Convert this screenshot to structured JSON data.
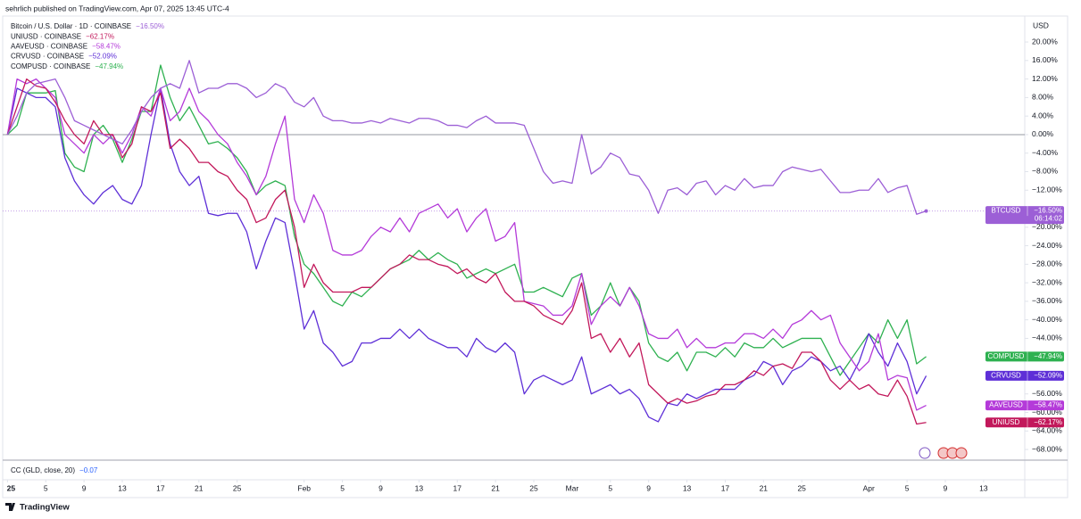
{
  "header": {
    "published": "sehrlich published on TradingView.com, Apr 07, 2025 13:45 UTC-4"
  },
  "chart_data": {
    "type": "line",
    "currency": "USD",
    "x": [
      0,
      1,
      2,
      3,
      4,
      5,
      6,
      7,
      8,
      9,
      10,
      11,
      12,
      13,
      14,
      15,
      16,
      17,
      18,
      19,
      20,
      21,
      22,
      23,
      24,
      25,
      26,
      27,
      28,
      29,
      30,
      31,
      32,
      33,
      34,
      35,
      36,
      37,
      38,
      39,
      40,
      41,
      42,
      43,
      44,
      45,
      46,
      47,
      48,
      49,
      50,
      51,
      52,
      53,
      54,
      55,
      56,
      57,
      58,
      59,
      60,
      61,
      62,
      63,
      64,
      65,
      66,
      67,
      68,
      69,
      70,
      71,
      72,
      73,
      74,
      75,
      76,
      77,
      78,
      79,
      80,
      81,
      82,
      83,
      84,
      85,
      86,
      87,
      88,
      89,
      90,
      91,
      92,
      93,
      94,
      95,
      96
    ],
    "xlim": [
      -0.5,
      106.3
    ],
    "xticks": [
      {
        "value": 0,
        "label": "25"
      },
      {
        "value": 4,
        "label": "5"
      },
      {
        "value": 8,
        "label": "9"
      },
      {
        "value": 12,
        "label": "13"
      },
      {
        "value": 16,
        "label": "17"
      },
      {
        "value": 20,
        "label": "21"
      },
      {
        "value": 24,
        "label": "25"
      },
      {
        "value": 31,
        "label": "Feb"
      },
      {
        "value": 35,
        "label": "5"
      },
      {
        "value": 39,
        "label": "9"
      },
      {
        "value": 43,
        "label": "13"
      },
      {
        "value": 47,
        "label": "17"
      },
      {
        "value": 51,
        "label": "21"
      },
      {
        "value": 55,
        "label": "25"
      },
      {
        "value": 59,
        "label": "Mar"
      },
      {
        "value": 63,
        "label": "5"
      },
      {
        "value": 67,
        "label": "9"
      },
      {
        "value": 71,
        "label": "13"
      },
      {
        "value": 75,
        "label": "17"
      },
      {
        "value": 79,
        "label": "21"
      },
      {
        "value": 83,
        "label": "25"
      },
      {
        "value": 90,
        "label": "Apr"
      },
      {
        "value": 94,
        "label": "5"
      },
      {
        "value": 98,
        "label": "9"
      },
      {
        "value": 102,
        "label": "13"
      }
    ],
    "ylim": [
      -70.3,
      25.6
    ],
    "yticks": [
      {
        "value": 20,
        "label": "20.00%"
      },
      {
        "value": 16,
        "label": "16.00%"
      },
      {
        "value": 12,
        "label": "12.00%"
      },
      {
        "value": 8,
        "label": "8.00%"
      },
      {
        "value": 4,
        "label": "4.00%"
      },
      {
        "value": 0,
        "label": "0.00%"
      },
      {
        "value": -4,
        "label": "−4.00%"
      },
      {
        "value": -8,
        "label": "−8.00%"
      },
      {
        "value": -12,
        "label": "−12.00%"
      },
      {
        "value": -20,
        "label": "−20.00%"
      },
      {
        "value": -24,
        "label": "−24.00%"
      },
      {
        "value": -28,
        "label": "−28.00%"
      },
      {
        "value": -32,
        "label": "−32.00%"
      },
      {
        "value": -36,
        "label": "−36.00%"
      },
      {
        "value": -40,
        "label": "−40.00%"
      },
      {
        "value": -44,
        "label": "−44.00%"
      },
      {
        "value": -56,
        "label": "−56.00%"
      },
      {
        "value": -60,
        "label": "−60.00%"
      },
      {
        "value": -64,
        "label": "−64.00%"
      },
      {
        "value": -68,
        "label": "−68.00%"
      }
    ],
    "grid": false,
    "series": [
      {
        "name": "Bitcoin / U.S. Dollar · 1D · COINBASE",
        "symbol": "BTCUSD",
        "change_label": "−16.50%",
        "countdown": "06:14:02",
        "color": "#9c5fd6",
        "values": [
          0,
          4,
          9,
          11,
          11.5,
          12,
          8,
          3,
          2,
          1,
          0,
          -1,
          -2,
          1,
          5,
          8,
          10,
          11,
          10,
          16,
          9,
          10,
          10,
          11,
          11,
          10,
          8,
          9,
          11,
          10,
          7,
          6,
          8,
          4,
          3,
          3,
          2.5,
          2.5,
          3,
          2.5,
          3.5,
          3,
          2.5,
          3.5,
          3.5,
          3,
          2,
          2,
          1.5,
          3,
          4,
          2.5,
          2.5,
          2.5,
          2,
          -3,
          -8,
          -10.5,
          -10,
          -10.5,
          0,
          -8.5,
          -7,
          -4,
          -5,
          -8.5,
          -9,
          -12,
          -17,
          -12,
          -11.5,
          -13,
          -10.5,
          -10,
          -13,
          -11,
          -12,
          -9.5,
          -11.5,
          -11,
          -11,
          -8,
          -7,
          -7.5,
          -8,
          -7.5,
          -10,
          -12.5,
          -12.5,
          -12,
          -12,
          -9.5,
          -12.5,
          -11.5,
          -11,
          -17.2,
          -16.5
        ]
      },
      {
        "name": "UNIUSD · COINBASE",
        "symbol": "UNIUSD",
        "change_label": "−62.17%",
        "color": "#c2185b",
        "values": [
          0,
          6,
          12,
          10.5,
          10,
          7,
          3,
          0,
          -2,
          3,
          0,
          0,
          -5,
          -2,
          6,
          5,
          9,
          -3,
          -1,
          -3,
          -6,
          -6,
          -8,
          -9,
          -12,
          -14,
          -19,
          -18,
          -14,
          -12,
          -20,
          -33,
          -28,
          -32,
          -34,
          -34,
          -34,
          -33,
          -33,
          -31,
          -29,
          -28,
          -26,
          -27,
          -27,
          -28,
          -28.5,
          -30,
          -29,
          -31,
          -32,
          -30,
          -34,
          -36,
          -36,
          -37,
          -39,
          -40,
          -41,
          -38,
          -32,
          -44,
          -43,
          -47,
          -44,
          -48,
          -45,
          -54,
          -56,
          -58,
          -57,
          -58,
          -57.5,
          -56.5,
          -56,
          -54,
          -54,
          -53,
          -51,
          -52,
          -50,
          -49.5,
          -50.5,
          -47,
          -47,
          -49,
          -53,
          -55,
          -53,
          -55,
          -54,
          -56,
          -56.5,
          -53,
          -56.5,
          -62.5,
          -62.17
        ]
      },
      {
        "name": "AAVEUSD · COINBASE",
        "symbol": "AAVEUSD",
        "change_label": "−58.47%",
        "color": "#b43ad9",
        "values": [
          0,
          12,
          11,
          12,
          10,
          8,
          0,
          -2,
          -4,
          0,
          -2,
          0,
          -4,
          0,
          6,
          4,
          10,
          3,
          5,
          10,
          5,
          3,
          0,
          -2,
          -6,
          -9,
          -13,
          -9,
          -2,
          4,
          -14,
          -19,
          -13,
          -17,
          -25,
          -26,
          -26,
          -25,
          -22,
          -20,
          -21,
          -18,
          -21,
          -17,
          -16,
          -15,
          -18,
          -16,
          -21,
          -18,
          -16,
          -23,
          -22,
          -19,
          -36,
          -36.5,
          -37,
          -39,
          -39,
          -37,
          -30,
          -41,
          -37,
          -35,
          -37,
          -33,
          -37,
          -43,
          -44,
          -44,
          -42,
          -46,
          -44,
          -46,
          -46,
          -45,
          -45,
          -43,
          -43,
          -44,
          -42,
          -44,
          -41,
          -40,
          -38,
          -40,
          -39,
          -45,
          -48,
          -51,
          -49,
          -43,
          -53,
          -52,
          -52.5,
          -59.5,
          -58.47
        ]
      },
      {
        "name": "CRVUSD · COINBASE",
        "symbol": "CRVUSD",
        "change_label": "−52.09%",
        "color": "#5e2fd7",
        "values": [
          0,
          10,
          9,
          8,
          8,
          6,
          -5,
          -10,
          -13,
          -15,
          -12.5,
          -11,
          -14,
          -15,
          -11,
          0,
          10,
          -2,
          -8,
          -11,
          -9,
          -17,
          -17.5,
          -17,
          -17,
          -21,
          -29,
          -23,
          -18,
          -19,
          -30,
          -42,
          -38,
          -45,
          -47,
          -50,
          -49,
          -45,
          -45,
          -44,
          -44,
          -42,
          -44,
          -42,
          -44,
          -45,
          -46,
          -46,
          -48,
          -44,
          -46,
          -47,
          -45,
          -47,
          -56,
          -53,
          -52,
          -53,
          -54,
          -53,
          -48,
          -56,
          -55,
          -54,
          -56,
          -55,
          -57,
          -61,
          -62,
          -58,
          -58.5,
          -56,
          -57,
          -56,
          -55,
          -55,
          -55,
          -53,
          -52,
          -49,
          -50,
          -54,
          -51,
          -50,
          -48,
          -49,
          -51,
          -50,
          -53,
          -49,
          -43,
          -47,
          -50,
          -45,
          -49,
          -56,
          -52.09
        ]
      },
      {
        "name": "COMPUSD · COINBASE",
        "symbol": "COMPUSD",
        "change_label": "−47.94%",
        "color": "#2eb150",
        "values": [
          0,
          2,
          9,
          9,
          9,
          9.5,
          -4,
          -7,
          -8,
          0,
          2,
          -1,
          -6,
          -1,
          5,
          5,
          15,
          8,
          3,
          6,
          2,
          -2,
          -1.5,
          -3,
          -5,
          -8,
          -13,
          -11,
          -10,
          -11,
          -22,
          -28,
          -30,
          -33,
          -36,
          -37,
          -34,
          -35,
          -33,
          -31,
          -29,
          -28,
          -27,
          -25,
          -27,
          -25.5,
          -27,
          -28,
          -31,
          -30,
          -29,
          -30,
          -29,
          -28,
          -34,
          -34,
          -33,
          -34,
          -35,
          -31,
          -30,
          -39,
          -37,
          -32,
          -37,
          -33,
          -36,
          -45,
          -48,
          -49,
          -47,
          -51,
          -47,
          -47,
          -48,
          -46,
          -48,
          -45,
          -46,
          -46,
          -44,
          -46,
          -45,
          -44,
          -44,
          -44,
          -48,
          -52,
          -49,
          -46,
          -43,
          -45,
          -40,
          -44,
          -40,
          -49.5,
          -47.94
        ]
      }
    ],
    "indicator": {
      "title": "CC (GLD, close, 20)",
      "value": "−0.07"
    }
  },
  "footer": {
    "brand": "TradingView"
  }
}
